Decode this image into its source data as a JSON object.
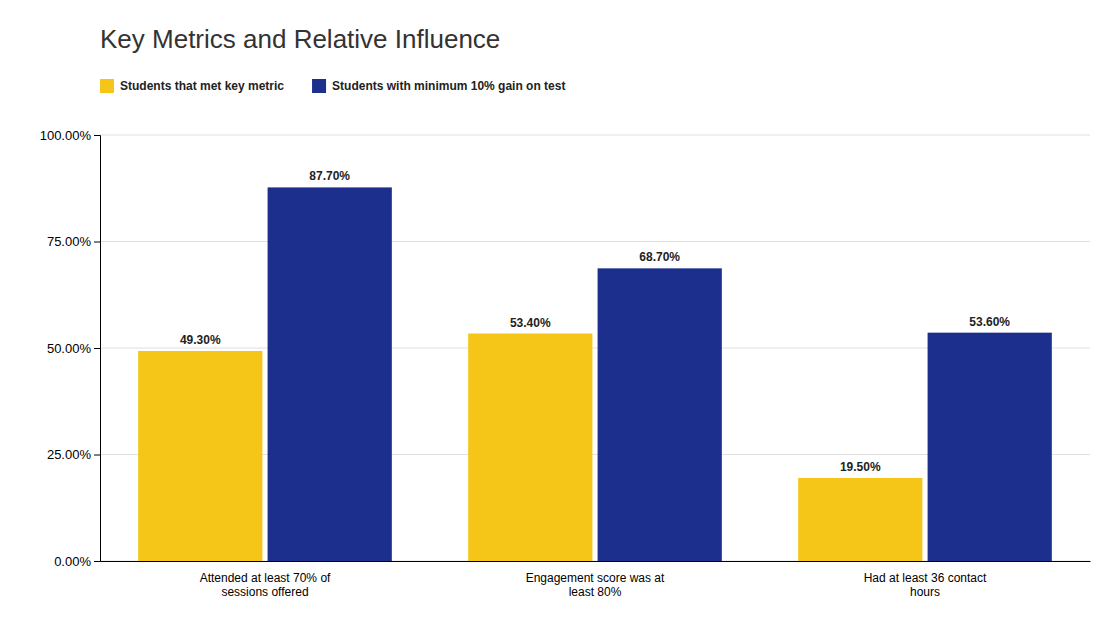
{
  "chart_data": {
    "type": "bar",
    "title": "Key Metrics and Relative Influence",
    "categories": [
      "Attended at least 70% of\nsessions offered",
      "Engagement score was at\nleast 80%",
      "Had at least 36 contact\nhours"
    ],
    "series": [
      {
        "name": "Students that met key metric",
        "color": "#F5C518",
        "values": [
          49.3,
          53.4,
          19.5
        ],
        "value_labels": [
          "49.30%",
          "53.40%",
          "19.50%"
        ]
      },
      {
        "name": "Students with minimum 10% gain on test",
        "color": "#1C2F8C",
        "values": [
          87.7,
          68.7,
          53.6
        ],
        "value_labels": [
          "87.70%",
          "68.70%",
          "53.60%"
        ]
      }
    ],
    "ylim": [
      0,
      100
    ],
    "yticks": [
      {
        "value": 0,
        "label": "0.00%"
      },
      {
        "value": 25,
        "label": "25.00%"
      },
      {
        "value": 50,
        "label": "50.00%"
      },
      {
        "value": 75,
        "label": "75.00%"
      },
      {
        "value": 100,
        "label": "100.00%"
      }
    ],
    "grid": true,
    "data_labels": true,
    "legend": "top"
  }
}
